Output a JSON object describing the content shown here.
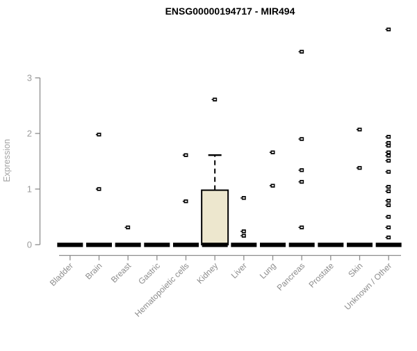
{
  "chart_data": {
    "type": "boxplot",
    "title": "ENSG00000194717 - MIR494",
    "ylabel": "Expression",
    "xlabel": "",
    "yticks": [
      0,
      1,
      2,
      3
    ],
    "ylim": [
      0,
      3.95
    ],
    "grid": false,
    "legend": "none",
    "categories": [
      "Bladder",
      "Brain",
      "Breast",
      "Gastric",
      "Hematopoietic cells",
      "Kidney",
      "Liver",
      "Lung",
      "Pancreas",
      "Prostate",
      "Skin",
      "Unknown / Other"
    ],
    "boxes": [
      {
        "category": "Bladder",
        "q1": 0,
        "median": 0,
        "q3": 0,
        "whisker_low": 0,
        "whisker_high": 0,
        "outliers": []
      },
      {
        "category": "Brain",
        "q1": 0,
        "median": 0,
        "q3": 0,
        "whisker_low": 0,
        "whisker_high": 0,
        "outliers": [
          1.98,
          1.0
        ]
      },
      {
        "category": "Breast",
        "q1": 0,
        "median": 0,
        "q3": 0,
        "whisker_low": 0,
        "whisker_high": 0,
        "outliers": [
          0.31
        ]
      },
      {
        "category": "Gastric",
        "q1": 0,
        "median": 0,
        "q3": 0,
        "whisker_low": 0,
        "whisker_high": 0,
        "outliers": []
      },
      {
        "category": "Hematopoietic cells",
        "q1": 0,
        "median": 0,
        "q3": 0,
        "whisker_low": 0,
        "whisker_high": 0,
        "outliers": [
          1.61,
          0.78
        ]
      },
      {
        "category": "Kidney",
        "q1": 0,
        "median": 0,
        "q3": 0.98,
        "whisker_low": 0,
        "whisker_high": 1.61,
        "outliers": [
          2.61
        ]
      },
      {
        "category": "Liver",
        "q1": 0,
        "median": 0,
        "q3": 0,
        "whisker_low": 0,
        "whisker_high": 0,
        "outliers": [
          0.84,
          0.24,
          0.16
        ]
      },
      {
        "category": "Lung",
        "q1": 0,
        "median": 0,
        "q3": 0,
        "whisker_low": 0,
        "whisker_high": 0,
        "outliers": [
          1.66,
          1.06
        ]
      },
      {
        "category": "Pancreas",
        "q1": 0,
        "median": 0,
        "q3": 0,
        "whisker_low": 0,
        "whisker_high": 0,
        "outliers": [
          3.47,
          1.9,
          1.34,
          1.13,
          0.31
        ]
      },
      {
        "category": "Prostate",
        "q1": 0,
        "median": 0,
        "q3": 0,
        "whisker_low": 0,
        "whisker_high": 0,
        "outliers": []
      },
      {
        "category": "Skin",
        "q1": 0,
        "median": 0,
        "q3": 0,
        "whisker_low": 0,
        "whisker_high": 0,
        "outliers": [
          2.07,
          1.38
        ]
      },
      {
        "category": "Unknown / Other",
        "q1": 0,
        "median": 0,
        "q3": 0,
        "whisker_low": 0,
        "whisker_high": 0,
        "outliers": [
          3.87,
          1.94,
          1.83,
          1.78,
          1.66,
          1.6,
          1.51,
          1.31,
          1.04,
          0.96,
          0.79,
          0.71,
          0.5,
          0.31,
          0.13
        ]
      }
    ],
    "colors": {
      "box_fill": "#EDE7CE",
      "box_border": "#000000",
      "median": "#000000",
      "whisker": "#000000",
      "outlier": "#000000",
      "axis": "#8C8C8C",
      "tick_label": "#9C9C9C",
      "category_label": "#8C8C8C",
      "ylabel": "#A3A3A3",
      "title": "#000000",
      "background": "#FFFFFF"
    }
  }
}
